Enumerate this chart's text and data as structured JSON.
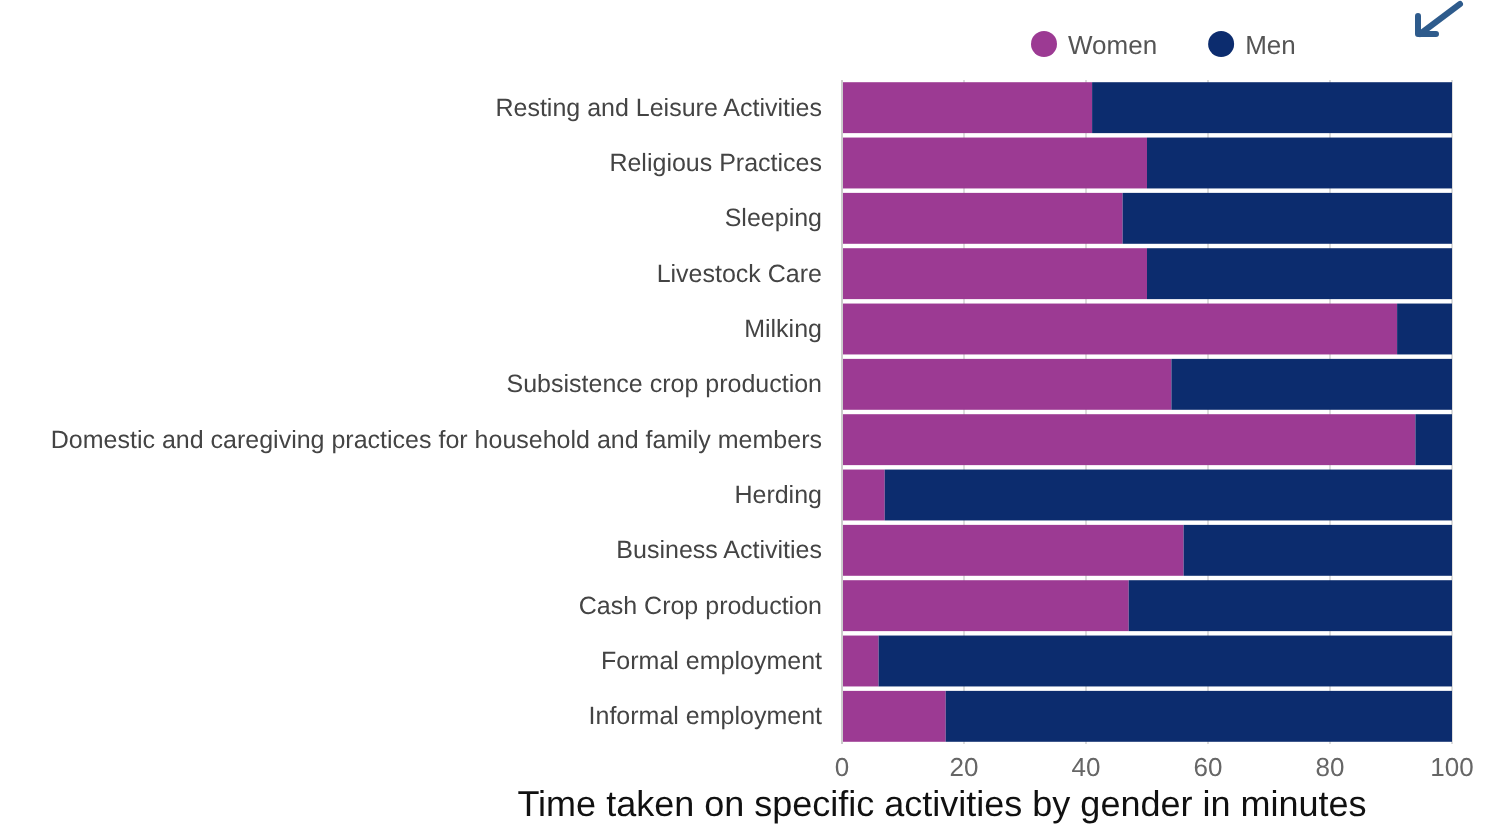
{
  "chart_data": {
    "type": "bar",
    "orientation": "horizontal",
    "stacked": true,
    "title": "Time taken on specific activities by gender in minutes",
    "categories": [
      "Resting and Leisure Activities",
      "Religious Practices",
      "Sleeping",
      "Livestock Care",
      "Milking",
      "Subsistence crop production",
      "Domestic and caregiving practices for household and family members",
      "Herding",
      "Business Activities",
      "Cash Crop production",
      "Formal employment",
      "Informal employment"
    ],
    "series": [
      {
        "name": "Women",
        "color": "#9c3a93",
        "values": [
          41,
          50,
          46,
          50,
          91,
          54,
          94,
          7,
          56,
          47,
          6,
          17
        ]
      },
      {
        "name": "Men",
        "color": "#0c2c6e",
        "values": [
          59,
          50,
          54,
          50,
          9,
          46,
          6,
          93,
          44,
          53,
          94,
          83
        ]
      }
    ],
    "xlim": [
      0,
      100
    ],
    "xticks": [
      0,
      20,
      40,
      60,
      80,
      100
    ],
    "grid": "x",
    "legend": "top"
  }
}
